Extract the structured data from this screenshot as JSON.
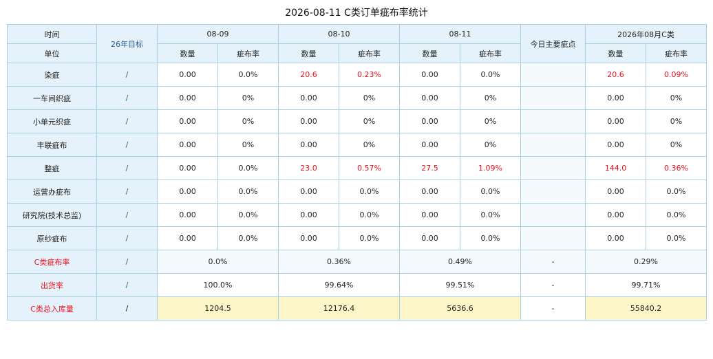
{
  "title": "2026-08-11 C类订单疵布率统计",
  "header": {
    "time_label": "时间",
    "unit_label": "单位",
    "target_label": "26年目标",
    "dates": [
      "08-09",
      "08-10",
      "08-11"
    ],
    "main_defect_label": "今日主要疵点",
    "month_label": "2026年08月C类",
    "qty_label": "数量",
    "rate_label": "疵布率"
  },
  "rows": [
    {
      "name": "染疵",
      "target": "/",
      "d1q": "0.00",
      "d1r": "0.0%",
      "d2q": "20.6",
      "d2r": "0.23%",
      "d3q": "0.00",
      "d3r": "0.0%",
      "main": "",
      "mq": "20.6",
      "mr": "0.09%"
    },
    {
      "name": "一车间织疵",
      "target": "/",
      "d1q": "0.00",
      "d1r": "0%",
      "d2q": "0.00",
      "d2r": "0%",
      "d3q": "0.00",
      "d3r": "0%",
      "main": "",
      "mq": "0.00",
      "mr": "0%"
    },
    {
      "name": "小单元织疵",
      "target": "/",
      "d1q": "0.00",
      "d1r": "0%",
      "d2q": "0.00",
      "d2r": "0%",
      "d3q": "0.00",
      "d3r": "0%",
      "main": "",
      "mq": "0.00",
      "mr": "0%"
    },
    {
      "name": "丰联疵布",
      "target": "/",
      "d1q": "0.00",
      "d1r": "0%",
      "d2q": "0.00",
      "d2r": "0%",
      "d3q": "0.00",
      "d3r": "0%",
      "main": "",
      "mq": "0.00",
      "mr": "0%"
    },
    {
      "name": "整疵",
      "target": "/",
      "d1q": "0.00",
      "d1r": "0.0%",
      "d2q": "23.0",
      "d2r": "0.57%",
      "d3q": "27.5",
      "d3r": "1.09%",
      "main": "",
      "mq": "144.0",
      "mr": "0.36%"
    },
    {
      "name": "运营办疵布",
      "target": "/",
      "d1q": "0.00",
      "d1r": "0.0%",
      "d2q": "0.00",
      "d2r": "0.0%",
      "d3q": "0.00",
      "d3r": "0.0%",
      "main": "",
      "mq": "0.00",
      "mr": "0.0%"
    },
    {
      "name": "研究院(技术总监)",
      "target": "/",
      "d1q": "0.00",
      "d1r": "0.0%",
      "d2q": "0.00",
      "d2r": "0.0%",
      "d3q": "0.00",
      "d3r": "0.0%",
      "main": "",
      "mq": "0.00",
      "mr": "0.0%"
    },
    {
      "name": "原纱疵布",
      "target": "/",
      "d1q": "0.00",
      "d1r": "0.0%",
      "d2q": "0.00",
      "d2r": "0.0%",
      "d3q": "0.00",
      "d3r": "0.0%",
      "main": "",
      "mq": "0.00",
      "mr": "0.0%"
    }
  ],
  "summary": [
    {
      "name": "C类疵布率",
      "target": "/",
      "d1": "0.0%",
      "d2": "0.36%",
      "d3": "0.49%",
      "main": "-",
      "month": "0.29%"
    },
    {
      "name": "出货率",
      "target": "/",
      "d1": "100.0%",
      "d2": "99.64%",
      "d3": "99.51%",
      "main": "-",
      "month": "99.71%"
    },
    {
      "name": "C类总入库量",
      "target": "/",
      "d1": "1204.5",
      "d2": "12176.4",
      "d3": "5636.6",
      "main": "-",
      "month": "55840.2"
    }
  ],
  "colors": {
    "header_bg": "#e6f2fb",
    "border": "#a9cfe2",
    "highlight_red": "#e8111a",
    "total_row_bg": "#fdf6c9"
  }
}
